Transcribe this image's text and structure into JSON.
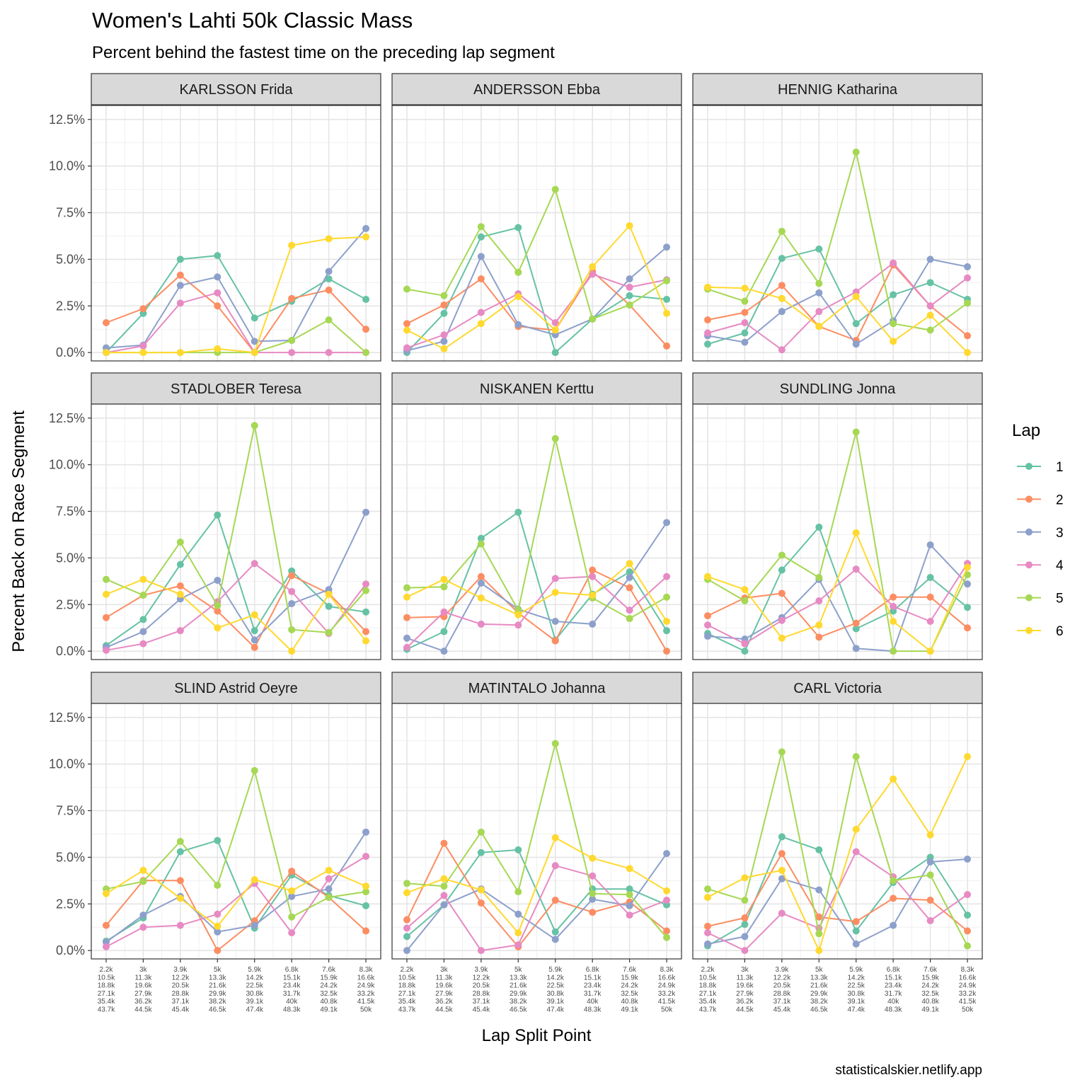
{
  "chart_data": {
    "type": "line",
    "title": "Women's Lahti 50k Classic Mass",
    "subtitle": "Percent behind the fastest time on the preceding lap segment",
    "xlabel": "Lap Split Point",
    "ylabel": "Percent Back on Race Segment",
    "caption": "statisticalskier.netlify.app",
    "legend": {
      "title": "Lap",
      "position": "right"
    },
    "grid": true,
    "ylim": [
      0,
      12.5
    ],
    "yticks": [
      "0.0%",
      "2.5%",
      "5.0%",
      "7.5%",
      "10.0%",
      "12.5%"
    ],
    "ytick_values": [
      0,
      2.5,
      5,
      7.5,
      10,
      12.5
    ],
    "x_categories": [
      [
        "2.2k",
        "10.5k",
        "18.8k",
        "27.1k",
        "35.4k",
        "43.7k"
      ],
      [
        "3k",
        "11.3k",
        "19.6k",
        "27.9k",
        "36.2k",
        "44.5k"
      ],
      [
        "3.9k",
        "12.2k",
        "20.5k",
        "28.8k",
        "37.1k",
        "45.4k"
      ],
      [
        "5k",
        "13.3k",
        "21.6k",
        "29.9k",
        "38.2k",
        "46.5k"
      ],
      [
        "5.9k",
        "14.2k",
        "22.5k",
        "30.8k",
        "39.1k",
        "47.4k"
      ],
      [
        "6.8k",
        "15.1k",
        "23.4k",
        "31.7k",
        "40k",
        "48.3k"
      ],
      [
        "7.6k",
        "15.9k",
        "24.2k",
        "32.5k",
        "40.8k",
        "49.1k"
      ],
      [
        "8.3k",
        "16.6k",
        "24.9k",
        "33.2k",
        "41.5k",
        "50k"
      ]
    ],
    "series_meta": [
      {
        "name": "1",
        "color": "#66C2A5"
      },
      {
        "name": "2",
        "color": "#FC8D62"
      },
      {
        "name": "3",
        "color": "#8DA0CB"
      },
      {
        "name": "4",
        "color": "#E78AC3"
      },
      {
        "name": "5",
        "color": "#A6D854"
      },
      {
        "name": "6",
        "color": "#FFD92F"
      }
    ],
    "panels": [
      {
        "name": "KARLSSON Frida",
        "series": [
          [
            0,
            2.1,
            5.0,
            5.2,
            1.85,
            2.75,
            3.95,
            2.85
          ],
          [
            1.6,
            2.35,
            4.15,
            2.5,
            0,
            2.9,
            3.35,
            1.25
          ],
          [
            0.25,
            0.4,
            3.6,
            4.05,
            0.6,
            0.65,
            4.35,
            6.65
          ],
          [
            0,
            0.35,
            2.65,
            3.2,
            0,
            0,
            0,
            0
          ],
          [
            0,
            0,
            0,
            0,
            0,
            0.65,
            1.75,
            0
          ],
          [
            0,
            0,
            0,
            0.2,
            0,
            5.75,
            6.1,
            6.2
          ]
        ]
      },
      {
        "name": "ANDERSSON Ebba",
        "series": [
          [
            0,
            2.1,
            6.2,
            6.7,
            0,
            1.8,
            3.05,
            2.85
          ],
          [
            1.55,
            2.55,
            3.95,
            1.4,
            1.2,
            4.35,
            2.55,
            0.35
          ],
          [
            0.1,
            0.6,
            5.15,
            1.5,
            0.95,
            1.8,
            3.95,
            5.65
          ],
          [
            0.25,
            0.95,
            2.15,
            3.15,
            1.6,
            4.2,
            3.5,
            3.9
          ],
          [
            3.4,
            3.05,
            6.75,
            4.3,
            8.75,
            1.8,
            2.55,
            3.85
          ],
          [
            1.2,
            0.2,
            1.55,
            3.0,
            1.2,
            4.6,
            6.8,
            2.1
          ]
        ]
      },
      {
        "name": "HENNIG Katharina",
        "series": [
          [
            0.45,
            1.05,
            5.05,
            5.55,
            1.55,
            3.1,
            3.75,
            2.85
          ],
          [
            1.75,
            2.15,
            3.6,
            1.4,
            0.65,
            4.7,
            2.5,
            0.9
          ],
          [
            0.9,
            0.55,
            2.2,
            3.2,
            0.45,
            1.7,
            5.0,
            4.6
          ],
          [
            1.05,
            1.6,
            0.15,
            2.2,
            3.25,
            4.8,
            2.5,
            4.0
          ],
          [
            3.4,
            2.75,
            6.5,
            3.7,
            10.75,
            1.55,
            1.2,
            2.65
          ],
          [
            3.5,
            3.45,
            2.9,
            1.4,
            3.0,
            0.6,
            2.0,
            0
          ]
        ]
      },
      {
        "name": "STADLOBER Teresa",
        "series": [
          [
            0.3,
            1.7,
            4.65,
            7.3,
            1.1,
            4.3,
            2.4,
            2.1
          ],
          [
            1.8,
            3.0,
            3.5,
            2.15,
            0.2,
            4.05,
            3.1,
            1.05
          ],
          [
            0.2,
            1.05,
            2.8,
            3.8,
            0.6,
            2.55,
            3.3,
            7.45
          ],
          [
            0.05,
            0.4,
            1.1,
            2.65,
            4.7,
            3.2,
            0.95,
            3.6
          ],
          [
            3.85,
            3.0,
            5.85,
            2.45,
            12.1,
            1.15,
            1.0,
            3.25
          ],
          [
            3.05,
            3.85,
            3.05,
            1.25,
            1.95,
            0,
            3.05,
            0.55
          ]
        ]
      },
      {
        "name": "NISKANEN Kerttu",
        "series": [
          [
            0.1,
            1.05,
            6.05,
            7.45,
            0.6,
            3.05,
            4.25,
            1.1
          ],
          [
            1.8,
            1.85,
            4.0,
            2.05,
            0.55,
            4.35,
            3.4,
            0
          ],
          [
            0.7,
            0,
            3.65,
            2.25,
            1.6,
            1.45,
            3.95,
            6.9
          ],
          [
            0.2,
            2.1,
            1.45,
            1.4,
            3.9,
            4.0,
            2.2,
            4.0
          ],
          [
            3.4,
            3.45,
            5.75,
            2.2,
            11.4,
            2.85,
            1.75,
            2.9
          ],
          [
            2.9,
            3.85,
            2.85,
            1.95,
            3.15,
            3.0,
            4.7,
            1.6
          ]
        ]
      },
      {
        "name": "SUNDLING Jonna",
        "series": [
          [
            0.95,
            0,
            4.35,
            6.65,
            1.2,
            2.15,
            3.95,
            2.35
          ],
          [
            1.9,
            2.85,
            3.1,
            0.75,
            1.5,
            2.9,
            2.9,
            1.25
          ],
          [
            0.8,
            0.65,
            1.8,
            3.85,
            0.15,
            0,
            5.7,
            3.6
          ],
          [
            1.4,
            0.4,
            1.65,
            2.7,
            4.4,
            2.4,
            1.6,
            4.7
          ],
          [
            3.85,
            2.7,
            5.15,
            3.95,
            11.75,
            0,
            0,
            4.1
          ],
          [
            4.0,
            3.3,
            0.7,
            1.4,
            6.35,
            1.6,
            0,
            4.5
          ]
        ]
      },
      {
        "name": "SLIND Astrid Oeyre",
        "series": [
          [
            0.5,
            1.75,
            5.3,
            5.9,
            1.2,
            4.05,
            2.95,
            2.4
          ],
          [
            1.35,
            3.75,
            3.75,
            0,
            1.6,
            4.25,
            2.85,
            1.05
          ],
          [
            0.45,
            1.9,
            2.9,
            1.0,
            1.35,
            2.9,
            3.3,
            6.35
          ],
          [
            0.2,
            1.25,
            1.35,
            1.95,
            3.6,
            0.95,
            3.85,
            5.05
          ],
          [
            3.3,
            3.7,
            5.85,
            3.5,
            9.65,
            1.8,
            2.85,
            3.15
          ],
          [
            3.05,
            4.3,
            2.8,
            1.3,
            3.8,
            3.2,
            4.3,
            3.45
          ]
        ]
      },
      {
        "name": "MATINTALO Johanna",
        "series": [
          [
            0.75,
            2.45,
            5.25,
            5.4,
            1.0,
            3.3,
            3.3,
            2.45
          ],
          [
            1.65,
            5.75,
            2.55,
            0.2,
            2.7,
            2.05,
            2.6,
            1.05
          ],
          [
            0,
            2.45,
            3.3,
            1.95,
            0.6,
            2.75,
            2.4,
            5.2
          ],
          [
            1.2,
            2.95,
            0,
            0.3,
            4.55,
            4.0,
            1.9,
            2.7
          ],
          [
            3.6,
            3.45,
            6.35,
            3.15,
            11.1,
            3.05,
            3.0,
            0.7
          ],
          [
            3.1,
            3.85,
            3.25,
            0.95,
            6.05,
            4.95,
            4.4,
            3.2
          ]
        ]
      },
      {
        "name": "CARL Victoria",
        "series": [
          [
            0.25,
            1.4,
            6.1,
            5.4,
            1.05,
            3.65,
            5.0,
            1.9
          ],
          [
            1.3,
            1.75,
            5.2,
            1.8,
            1.55,
            2.8,
            2.7,
            1.05
          ],
          [
            0.35,
            0.75,
            3.85,
            3.25,
            0.35,
            1.35,
            4.75,
            4.9
          ],
          [
            0.95,
            0,
            2.0,
            1.2,
            5.3,
            3.95,
            1.6,
            3.0
          ],
          [
            3.3,
            2.7,
            10.65,
            0.9,
            10.4,
            3.75,
            4.05,
            0.25
          ],
          [
            2.85,
            3.9,
            4.3,
            0,
            6.5,
            9.2,
            6.2,
            10.4
          ]
        ]
      }
    ]
  }
}
